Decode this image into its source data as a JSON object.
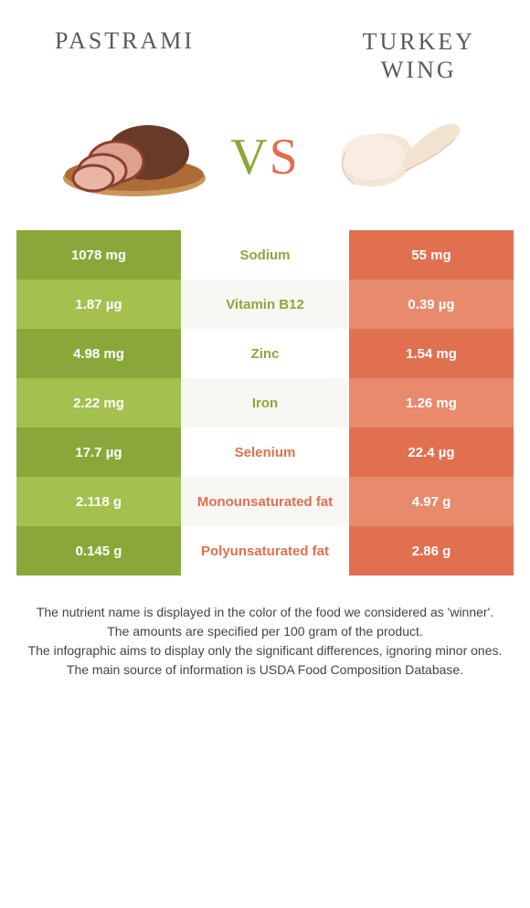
{
  "header": {
    "left_title": "Pastrami",
    "right_title_line1": "Turkey",
    "right_title_line2": "wing"
  },
  "vs": {
    "v": "V",
    "s": "S"
  },
  "colors": {
    "green_dark": "#8aa83a",
    "green_light": "#a4c14f",
    "orange_dark": "#e07050",
    "orange_light": "#e88b6d",
    "mid_grey": "#f7f7f3"
  },
  "rows": [
    {
      "left": "1078 mg",
      "nutrient": "Sodium",
      "right": "55 mg",
      "winner": "left"
    },
    {
      "left": "1.87 µg",
      "nutrient": "Vitamin B12",
      "right": "0.39 µg",
      "winner": "left"
    },
    {
      "left": "4.98 mg",
      "nutrient": "Zinc",
      "right": "1.54 mg",
      "winner": "left"
    },
    {
      "left": "2.22 mg",
      "nutrient": "Iron",
      "right": "1.26 mg",
      "winner": "left"
    },
    {
      "left": "17.7 µg",
      "nutrient": "Selenium",
      "right": "22.4 µg",
      "winner": "right"
    },
    {
      "left": "2.118 g",
      "nutrient": "Monounsaturated fat",
      "right": "4.97 g",
      "winner": "right"
    },
    {
      "left": "0.145 g",
      "nutrient": "Polyunsaturated fat",
      "right": "2.86 g",
      "winner": "right"
    }
  ],
  "footer": {
    "line1": "The nutrient name is displayed in the color of the food we considered as 'winner'.",
    "line2": "The amounts are specified per 100 gram of the product.",
    "line3": "The infographic aims to display only the significant differences, ignoring minor ones.",
    "line4": "The main source of information is USDA Food Composition Database."
  }
}
